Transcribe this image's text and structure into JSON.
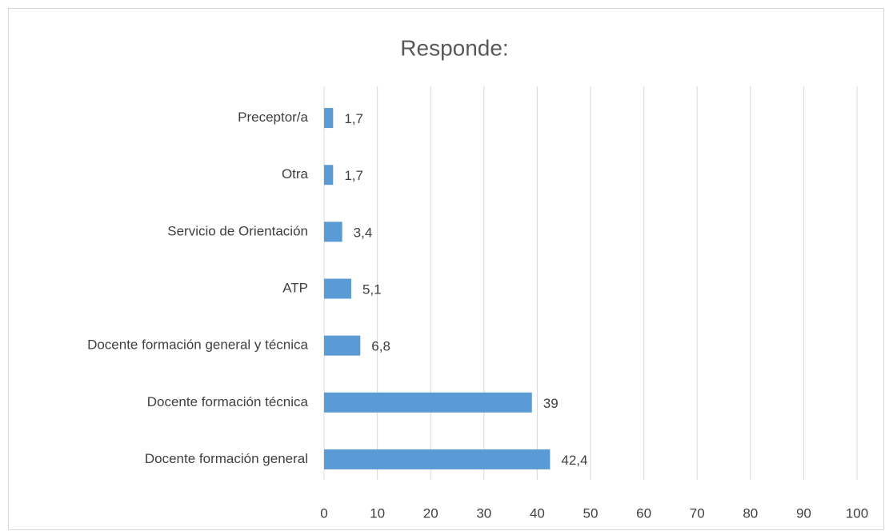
{
  "chart_data": {
    "type": "bar",
    "orientation": "horizontal",
    "title": "Responde:",
    "categories": [
      "Preceptor/a",
      "Otra",
      "Servicio de Orientación",
      "ATP",
      "Docente formación general y técnica",
      "Docente formación técnica",
      "Docente formación general"
    ],
    "values": [
      1.7,
      1.7,
      3.4,
      5.1,
      6.8,
      39,
      42.4
    ],
    "value_labels": [
      "1,7",
      "1,7",
      "3,4",
      "5,1",
      "6,8",
      "39",
      "42,4"
    ],
    "color": "#5b9bd5",
    "xlim": [
      0,
      100
    ],
    "xticks": [
      0,
      10,
      20,
      30,
      40,
      50,
      60,
      70,
      80,
      90,
      100
    ],
    "grid": true
  }
}
